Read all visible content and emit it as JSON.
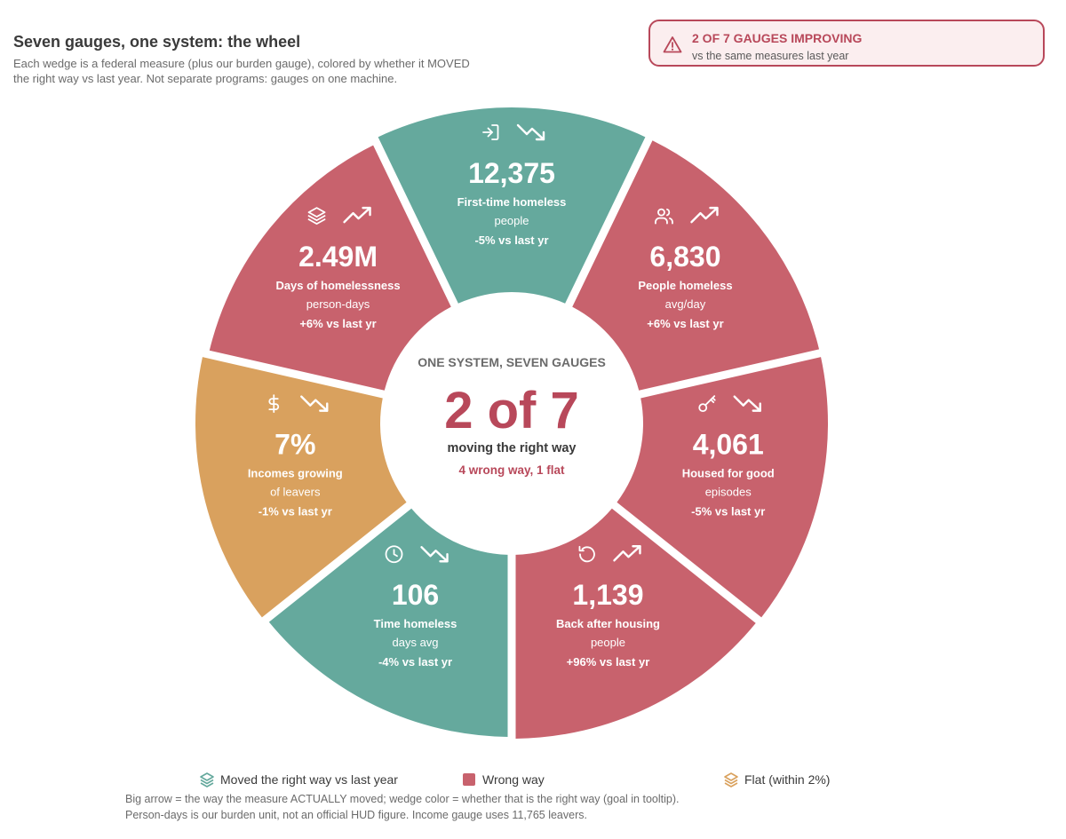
{
  "header": {
    "title": "Seven gauges, one system: the wheel",
    "subtitle": "Each wedge is a federal measure (plus our burden gauge), colored by whether it MOVED the right way vs last year. Not separate programs: gauges on one machine."
  },
  "callout": {
    "icon": "warning-triangle-icon",
    "headline": "2 OF 7 GAUGES IMPROVING",
    "subtext": "vs the same measures last year"
  },
  "colors": {
    "good": "#65a99d",
    "bad": "#c8626d",
    "flat": "#d9a15e",
    "accent": "#b8485a"
  },
  "chart_data": {
    "type": "pie",
    "title": "Seven gauges, one system: the wheel",
    "center": {
      "kicker": "ONE SYSTEM, SEVEN GAUGES",
      "big": "2 of 7",
      "label": "moving the right way",
      "sub": "4 wrong way, 1 flat"
    },
    "wedges": [
      {
        "value": "12,375",
        "label": "First-time homeless",
        "unit": "people",
        "change": "-5% vs last yr",
        "change_pct": -5,
        "status": "good",
        "icon": "sign-in-icon",
        "trend": "down"
      },
      {
        "value": "6,830",
        "label": "People homeless",
        "unit": "avg/day",
        "change": "+6% vs last yr",
        "change_pct": 6,
        "status": "bad",
        "icon": "users-icon",
        "trend": "up"
      },
      {
        "value": "4,061",
        "label": "Housed for good",
        "unit": "episodes",
        "change": "-5% vs last yr",
        "change_pct": -5,
        "status": "bad",
        "icon": "key-icon",
        "trend": "down"
      },
      {
        "value": "1,139",
        "label": "Back after housing",
        "unit": "people",
        "change": "+96% vs last yr",
        "change_pct": 96,
        "status": "bad",
        "icon": "rotate-ccw-icon",
        "trend": "up"
      },
      {
        "value": "106",
        "label": "Time homeless",
        "unit": "days avg",
        "change": "-4% vs last yr",
        "change_pct": -4,
        "status": "good",
        "icon": "clock-icon",
        "trend": "down"
      },
      {
        "value": "7%",
        "label": "Incomes growing",
        "unit": "of leavers",
        "change": "-1% vs last yr",
        "change_pct": -1,
        "status": "flat",
        "icon": "dollar-icon",
        "trend": "down"
      },
      {
        "value": "2.49M",
        "label": "Days of homelessness",
        "unit": "person-days",
        "change": "+6% vs last yr",
        "change_pct": 6,
        "status": "bad",
        "icon": "layers-icon",
        "trend": "up"
      }
    ],
    "legend": [
      {
        "label": "Moved the right way vs last year",
        "status": "good",
        "icon": "layers-icon"
      },
      {
        "label": "Wrong way",
        "status": "bad",
        "icon": "square-icon"
      },
      {
        "label": "Flat (within 2%)",
        "status": "flat",
        "icon": "layers-icon"
      }
    ]
  },
  "footnote": {
    "line1": "Big arrow = the way the measure ACTUALLY moved; wedge color = whether that is the right way (goal in tooltip).",
    "line2": "Person-days is our burden unit, not an official HUD figure. Income gauge uses 11,765 leavers."
  }
}
